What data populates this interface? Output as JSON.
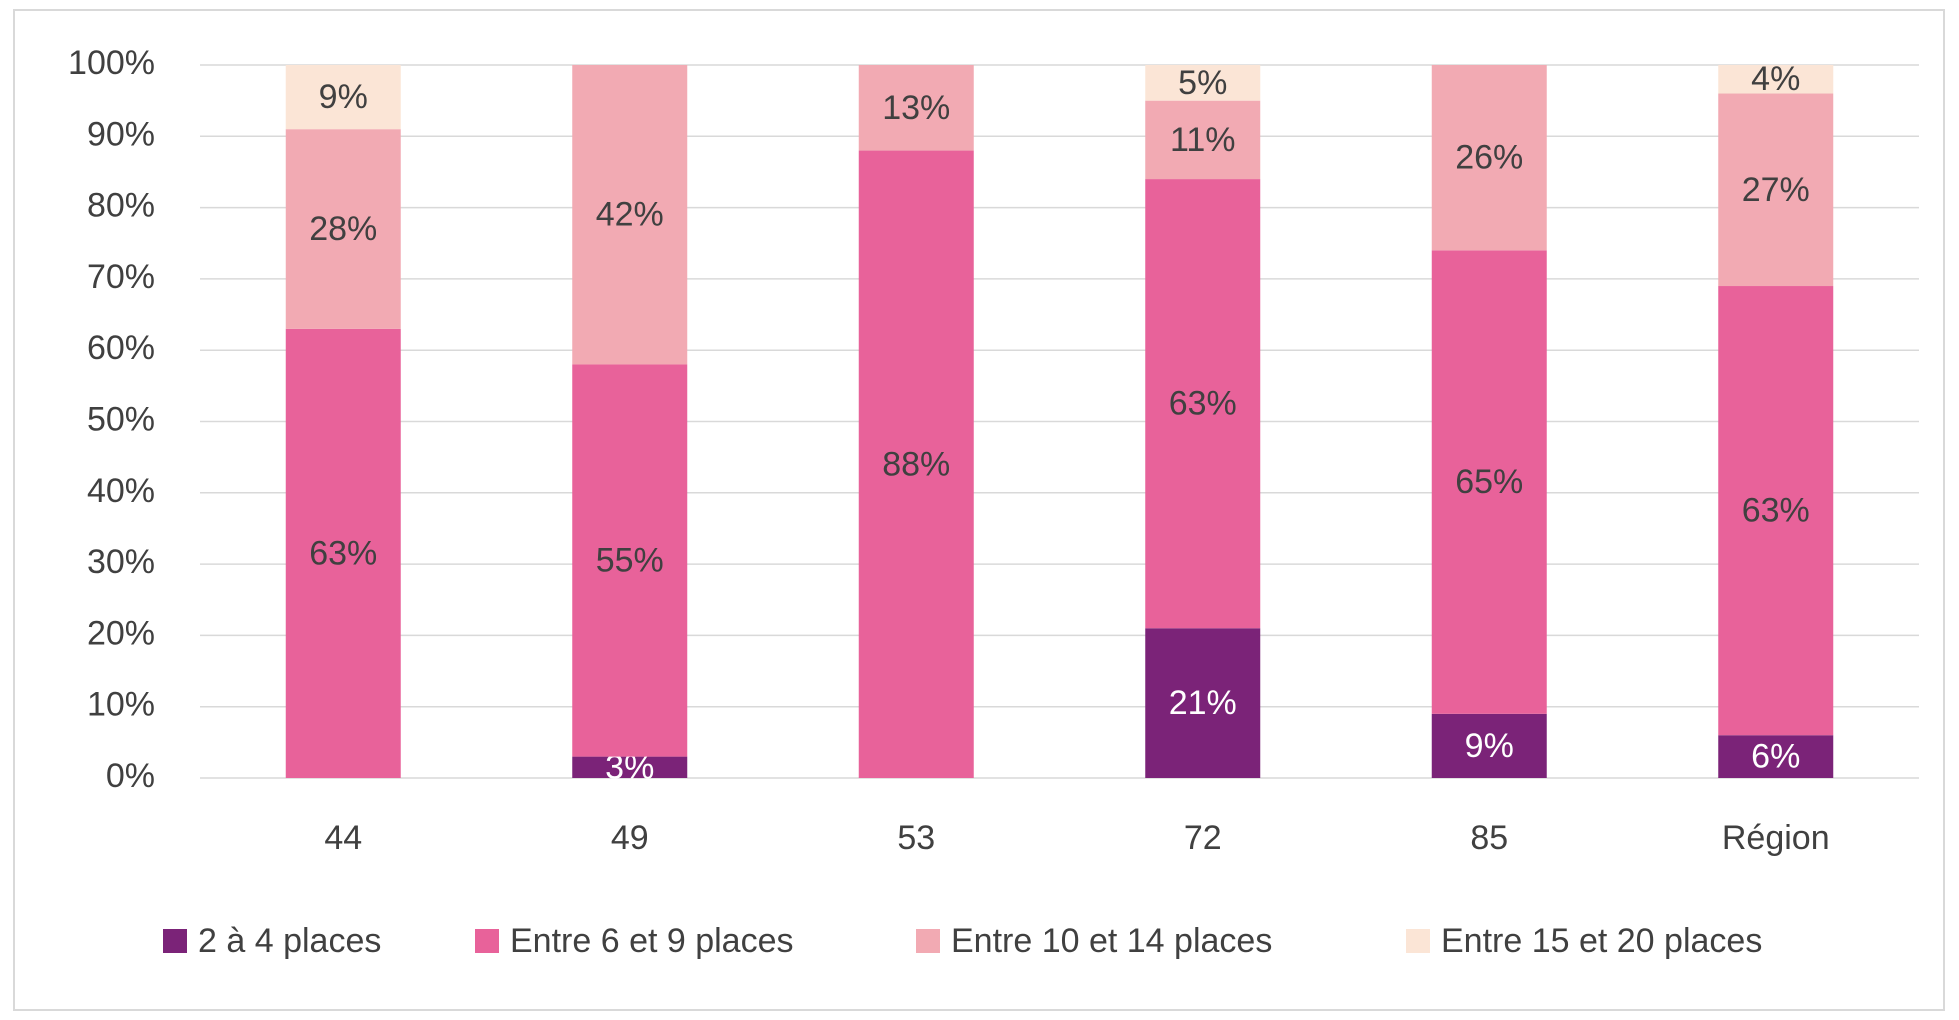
{
  "chart_data": {
    "type": "stacked_bar",
    "categories": [
      "44",
      "49",
      "53",
      "72",
      "85",
      "Région"
    ],
    "series": [
      {
        "name": "2 à 4 places",
        "color": "#7b2378",
        "label_color": "#ffffff",
        "values": [
          null,
          3,
          null,
          21,
          9,
          6
        ],
        "value_labels": [
          null,
          "3%",
          null,
          "21%",
          "9%",
          "6%"
        ]
      },
      {
        "name": "Entre 6 et 9 places",
        "color": "#e8629a",
        "label_color": "#404040",
        "values": [
          63,
          55,
          88,
          63,
          65,
          63
        ],
        "value_labels": [
          "63%",
          "55%",
          "88%",
          "63%",
          "65%",
          "63%"
        ]
      },
      {
        "name": "Entre 10 et 14 places",
        "color": "#f2aab3",
        "label_color": "#404040",
        "values": [
          28,
          42,
          13,
          11,
          26,
          27
        ],
        "value_labels": [
          "28%",
          "42%",
          "13%",
          "11%",
          "26%",
          "27%"
        ]
      },
      {
        "name": "Entre 15 et 20 places",
        "color": "#fbe5d6",
        "label_color": "#404040",
        "values": [
          9,
          null,
          null,
          5,
          null,
          4
        ],
        "value_labels": [
          "9%",
          null,
          null,
          "5%",
          null,
          "4%"
        ]
      }
    ],
    "ylim": [
      0,
      100
    ],
    "yticks": [
      {
        "value": 0,
        "label": "0%"
      },
      {
        "value": 10,
        "label": "10%"
      },
      {
        "value": 20,
        "label": "20%"
      },
      {
        "value": 30,
        "label": "30%"
      },
      {
        "value": 40,
        "label": "40%"
      },
      {
        "value": 50,
        "label": "50%"
      },
      {
        "value": 60,
        "label": "60%"
      },
      {
        "value": 70,
        "label": "70%"
      },
      {
        "value": 80,
        "label": "80%"
      },
      {
        "value": 90,
        "label": "90%"
      },
      {
        "value": 100,
        "label": "100%"
      }
    ],
    "grid": true,
    "legend": "bottom"
  }
}
